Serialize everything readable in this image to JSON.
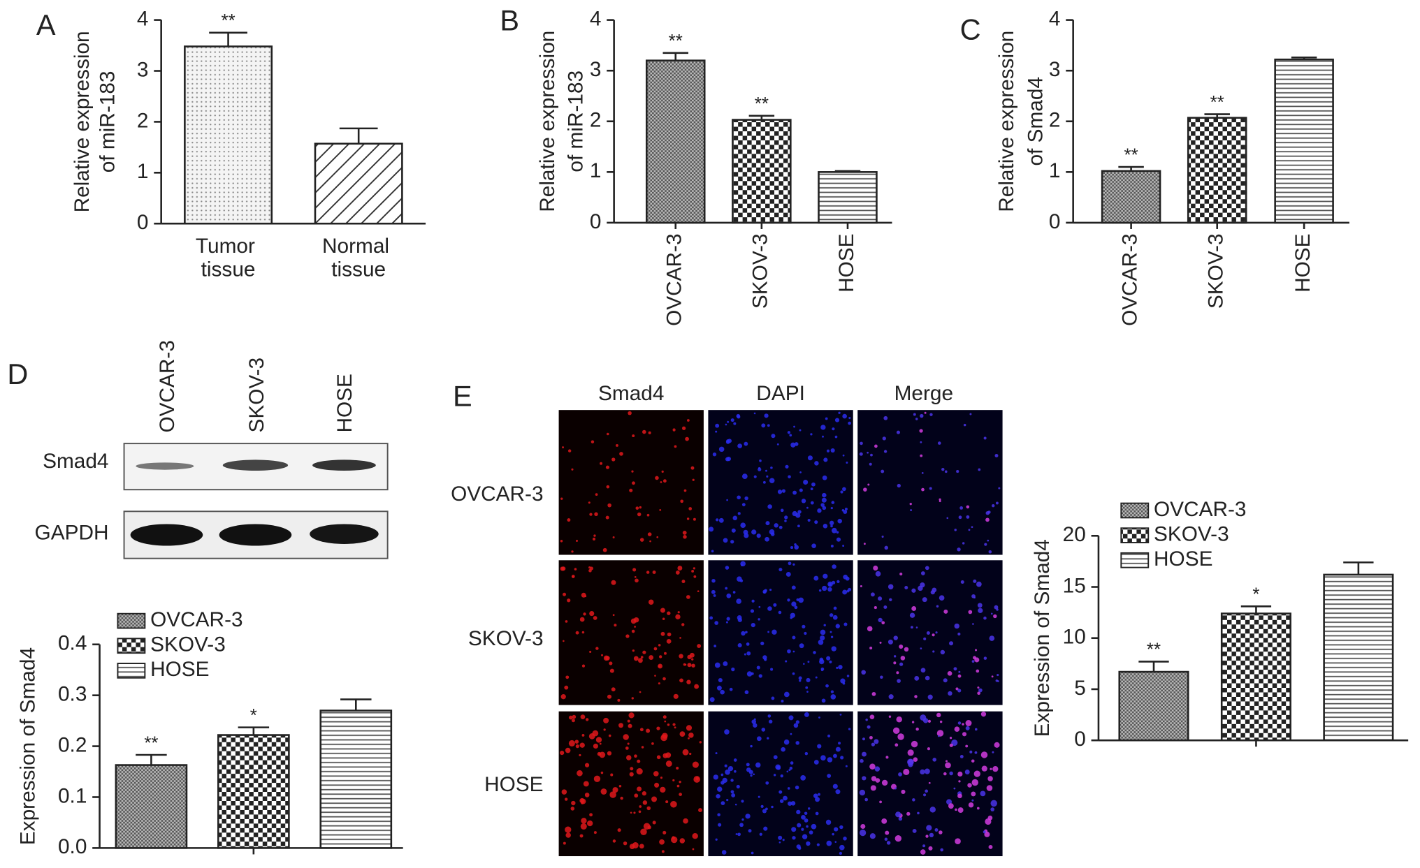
{
  "panels": [
    "A",
    "B",
    "C",
    "D",
    "E"
  ],
  "blot": {
    "lanes": [
      "OVCAR-3",
      "SKOV-3",
      "HOSE"
    ],
    "rows": [
      "Smad4",
      "GAPDH"
    ]
  },
  "images": {
    "columns": [
      "Smad4",
      "DAPI",
      "Merge"
    ],
    "rows": [
      "OVCAR-3",
      "SKOV-3",
      "HOSE"
    ]
  },
  "chart_data": [
    {
      "type": "bar",
      "ylabel": [
        "Relative expression",
        "of miR-183"
      ],
      "categories": [
        "Tumor tissue",
        "Normal tissue"
      ],
      "values": [
        3.48,
        1.57
      ],
      "errors": [
        0.27,
        0.3
      ],
      "annotations": [
        "**",
        null
      ],
      "fills": [
        "dots",
        "hatch"
      ],
      "ylim": [
        0,
        4
      ],
      "yticks": [
        0,
        1,
        2,
        3,
        4
      ]
    },
    {
      "type": "bar",
      "ylabel": [
        "Relative expression",
        "of miR-183"
      ],
      "categories": [
        "OVCAR-3",
        "SKOV-3",
        "HOSE"
      ],
      "values": [
        3.2,
        2.03,
        1.0
      ],
      "errors": [
        0.15,
        0.08,
        0.02
      ],
      "annotations": [
        "**",
        "**",
        null
      ],
      "fills": [
        "cross",
        "checker",
        "hlines"
      ],
      "ylim": [
        0,
        4
      ],
      "yticks": [
        0,
        1,
        2,
        3,
        4
      ]
    },
    {
      "type": "bar",
      "ylabel": [
        "Relative expression",
        "of Smad4"
      ],
      "categories": [
        "OVCAR-3",
        "SKOV-3",
        "HOSE"
      ],
      "values": [
        1.02,
        2.07,
        3.22
      ],
      "errors": [
        0.08,
        0.07,
        0.04
      ],
      "annotations": [
        "**",
        "**",
        null
      ],
      "fills": [
        "cross",
        "checker",
        "hlines"
      ],
      "ylim": [
        0,
        4
      ],
      "yticks": [
        0,
        1,
        2,
        3,
        4
      ]
    },
    {
      "type": "bar",
      "ylabel": [
        "Expression of Smad4"
      ],
      "legend": true,
      "categories": [
        "OVCAR-3",
        "SKOV-3",
        "HOSE"
      ],
      "values": [
        0.163,
        0.222,
        0.27
      ],
      "errors": [
        0.02,
        0.015,
        0.022
      ],
      "annotations": [
        "**",
        "*",
        null
      ],
      "fills": [
        "cross",
        "checker",
        "hlines"
      ],
      "ylim": [
        0,
        0.4
      ],
      "yticks": [
        {
          "value": 0,
          "label": "0.0"
        },
        0.1,
        0.2,
        0.3,
        0.4
      ]
    },
    {
      "type": "bar",
      "ylabel": [
        "Expression of Smad4"
      ],
      "legend": true,
      "categories": [
        "OVCAR-3",
        "SKOV-3",
        "HOSE"
      ],
      "values": [
        6.7,
        12.4,
        16.2
      ],
      "errors": [
        1.0,
        0.7,
        1.2
      ],
      "annotations": [
        "**",
        "*",
        null
      ],
      "fills": [
        "cross",
        "checker",
        "hlines"
      ],
      "ylim": [
        0,
        20
      ],
      "yticks": [
        0,
        5,
        10,
        15,
        20
      ]
    }
  ]
}
